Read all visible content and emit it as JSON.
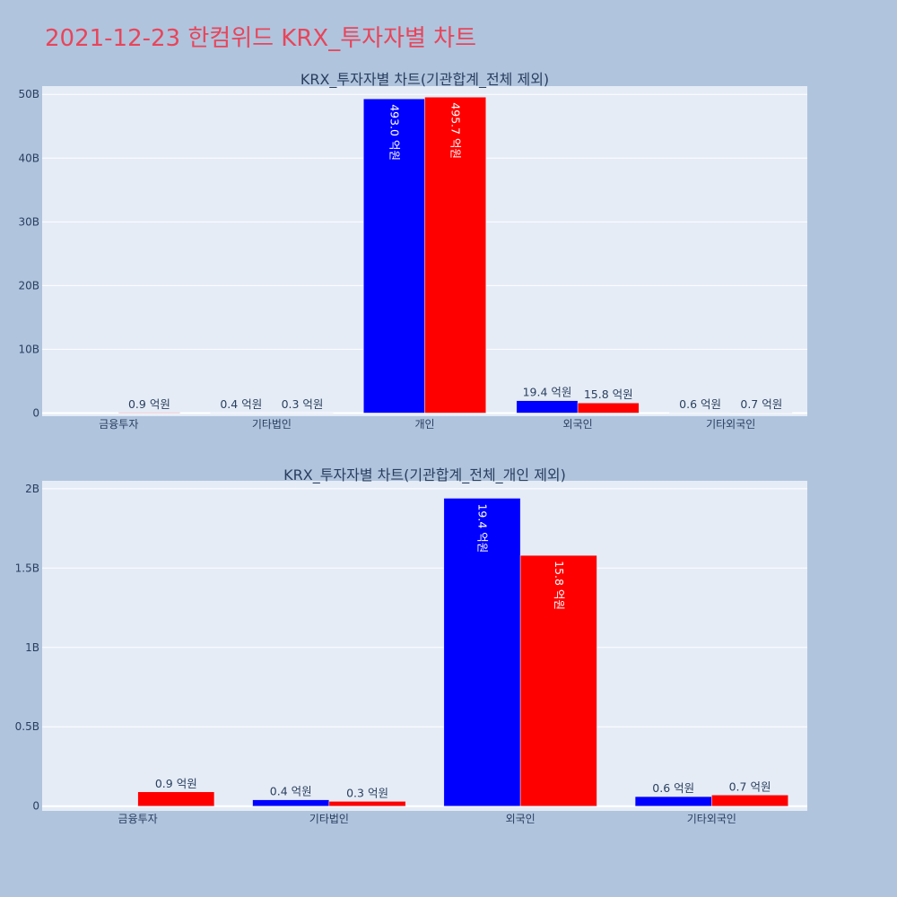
{
  "page": {
    "title": "2021-12-23 한컴위드 KRX_투자자별 차트"
  },
  "colors": {
    "buy": "#0000ff",
    "sell": "#ff0000",
    "plot_bg": "#e5ecf6",
    "page_bg": "#b0c4de"
  },
  "chart_data": [
    {
      "type": "bar",
      "title": "KRX_투자자별 차트(기관합계_전체 제외)",
      "categories": [
        "금융투자",
        "기타법인",
        "개인",
        "외국인",
        "기타외국인"
      ],
      "ylim": [
        -0.5,
        51.3
      ],
      "yticks": [
        0,
        10,
        20,
        30,
        40,
        50
      ],
      "ytick_labels": [
        "0",
        "10B",
        "20B",
        "30B",
        "40B",
        "50B"
      ],
      "grid": true,
      "series": [
        {
          "color": "#0000ff",
          "values": [
            0.0,
            0.04,
            49.3,
            1.94,
            0.06
          ],
          "labels": [
            "",
            "0.4 억원",
            "493.0 억원",
            "19.4 억원",
            "0.6 억원"
          ]
        },
        {
          "color": "#ff0000",
          "values": [
            0.09,
            0.03,
            49.57,
            1.58,
            0.07
          ],
          "labels": [
            "0.9 억원",
            "0.3 억원",
            "495.7 억원",
            "15.8 억원",
            "0.7 억원"
          ]
        }
      ]
    },
    {
      "type": "bar",
      "title": "KRX_투자자별 차트(기관합계_전체_개인 제외)",
      "categories": [
        "금융투자",
        "기타법인",
        "외국인",
        "기타외국인"
      ],
      "ylim": [
        -0.03,
        2.05
      ],
      "yticks": [
        0,
        0.5,
        1,
        1.5,
        2
      ],
      "ytick_labels": [
        "0",
        "0.5B",
        "1B",
        "1.5B",
        "2B"
      ],
      "grid": true,
      "series": [
        {
          "color": "#0000ff",
          "values": [
            0.0,
            0.04,
            1.94,
            0.06
          ],
          "labels": [
            "",
            "0.4 억원",
            "19.4 억원",
            "0.6 억원"
          ]
        },
        {
          "color": "#ff0000",
          "values": [
            0.09,
            0.03,
            1.58,
            0.07
          ],
          "labels": [
            "0.9 억원",
            "0.3 억원",
            "15.8 억원",
            "0.7 억원"
          ]
        }
      ]
    }
  ]
}
